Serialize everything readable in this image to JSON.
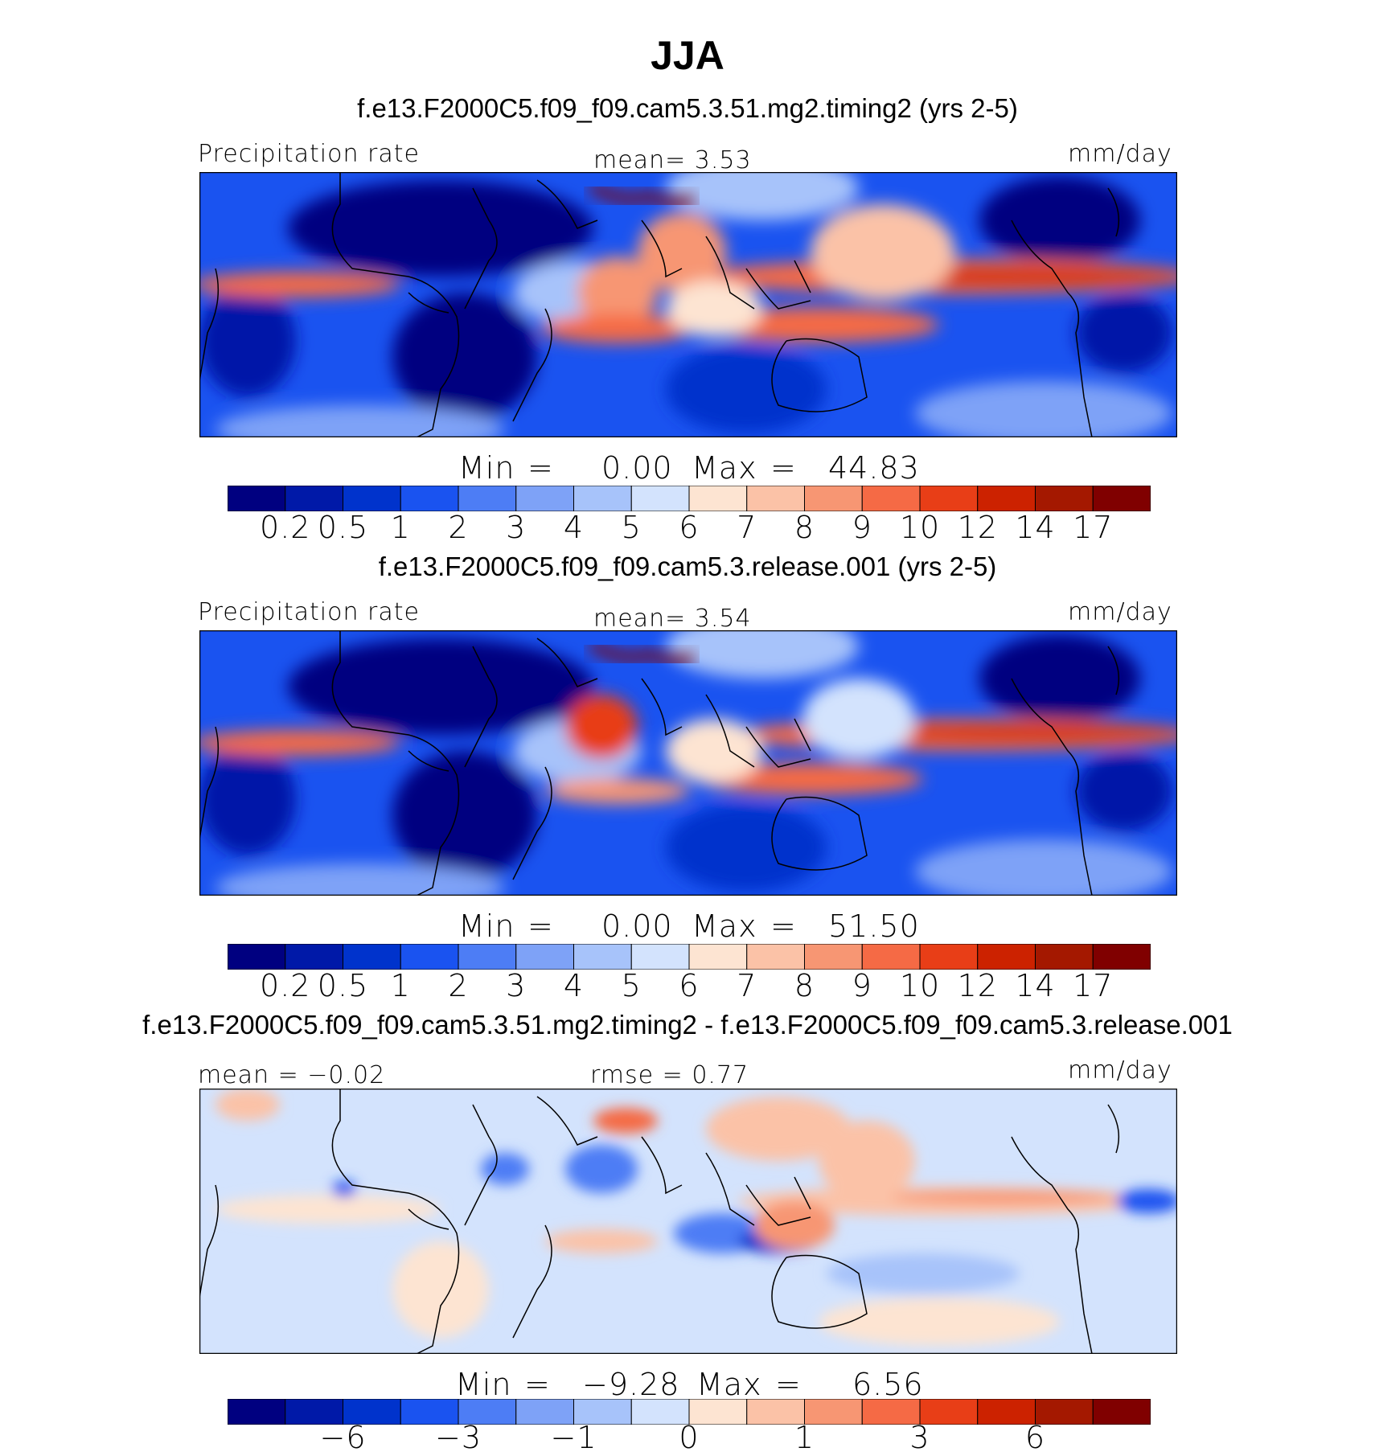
{
  "season_title": "JJA",
  "panels": [
    {
      "case_title": "f.e13.F2000C5.f09_f09.cam5.3.51.mg2.timing2 (yrs 2-5)",
      "left_label": "Precipitation  rate",
      "center_label": "mean=    3.53",
      "right_label": "mm/day",
      "min_label": "Min",
      "min_value": "0.00",
      "max_label": "Max",
      "max_value": "44.83",
      "colorbar": "precip"
    },
    {
      "case_title": "f.e13.F2000C5.f09_f09.cam5.3.release.001 (yrs 2-5)",
      "left_label": "Precipitation  rate",
      "center_label": "mean=    3.54",
      "right_label": "mm/day",
      "min_label": "Min",
      "min_value": "0.00",
      "max_label": "Max",
      "max_value": "51.50",
      "colorbar": "precip"
    },
    {
      "case_title": "f.e13.F2000C5.f09_f09.cam5.3.51.mg2.timing2 - f.e13.F2000C5.f09_f09.cam5.3.release.001",
      "left_label": "mean  =   −0.02",
      "center_label": "rmse  =    0.77",
      "right_label": "mm/day",
      "min_label": "Min",
      "min_value": "−9.28",
      "max_label": "Max",
      "max_value": "6.56",
      "colorbar": "diff"
    }
  ],
  "colorbars": {
    "precip": {
      "colors": [
        "#000080",
        "#0019a8",
        "#0033cc",
        "#1a53f0",
        "#4d7df5",
        "#7ea2f7",
        "#a7c3fa",
        "#d3e3fd",
        "#fde4d2",
        "#fbc2a7",
        "#f79673",
        "#f56a45",
        "#e83e17",
        "#cc2200",
        "#a41800",
        "#800000"
      ],
      "ticks": [
        "0.2",
        "0.5",
        "1",
        "2",
        "3",
        "4",
        "5",
        "6",
        "7",
        "8",
        "9",
        "10",
        "12",
        "14",
        "17"
      ]
    },
    "diff": {
      "colors": [
        "#000080",
        "#0019a8",
        "#0033cc",
        "#1a53f0",
        "#4d7df5",
        "#7ea2f7",
        "#a7c3fa",
        "#d3e3fd",
        "#fde4d2",
        "#fbc2a7",
        "#f79673",
        "#f56a45",
        "#e83e17",
        "#cc2200",
        "#a41800",
        "#800000"
      ],
      "ticks": [
        "−6",
        "−3",
        "−1",
        "0",
        "1",
        "3",
        "6"
      ],
      "tick_boundaries": [
        2,
        4,
        6,
        8,
        10,
        12,
        14
      ]
    }
  }
}
